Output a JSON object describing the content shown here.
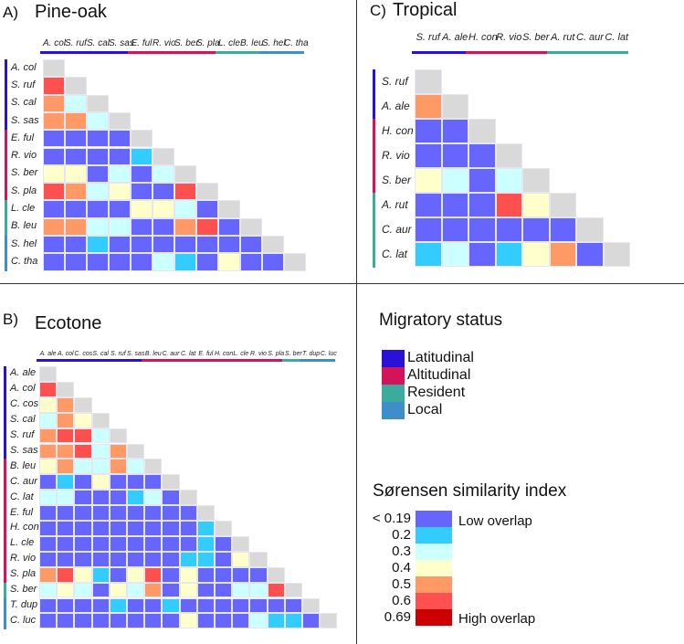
{
  "groups": {
    "lat": {
      "label": "Latitudinal",
      "color": "#2a10d8"
    },
    "alt": {
      "label": "Altitudinal",
      "color": "#d4145a"
    },
    "res": {
      "label": "Resident",
      "color": "#3aab9c"
    },
    "loc": {
      "label": "Local",
      "color": "#3e8ec8"
    }
  },
  "legend": {
    "migratory_title": "Migratory status",
    "similarity_title": "Sørensen similarity index",
    "low_label": "Low overlap",
    "high_label": "High overlap",
    "diagonal_color": "#d9d9d9",
    "bins": [
      {
        "label": "< 0.19",
        "value": 0.19,
        "color": "#6666ff"
      },
      {
        "label": "0.2",
        "value": 0.2,
        "color": "#33ccff"
      },
      {
        "label": "0.3",
        "value": 0.3,
        "color": "#ccffff"
      },
      {
        "label": "0.4",
        "value": 0.4,
        "color": "#ffffcc"
      },
      {
        "label": "0.5",
        "value": 0.5,
        "color": "#ff9966"
      },
      {
        "label": "0.6",
        "value": 0.6,
        "color": "#ff5050"
      },
      {
        "label": "0.69",
        "value": 0.69,
        "color": "#cc0000"
      }
    ]
  },
  "chart_data": [
    {
      "type": "heatmap",
      "letter": "A)",
      "title": "Pine-oak",
      "species": [
        "A. col",
        "S. ruf",
        "S. cal",
        "S. sas",
        "E. ful",
        "R. vio",
        "S. ber",
        "S. pla",
        "L. cle",
        "B. leu",
        "S. hel",
        "C. tha"
      ],
      "groups": [
        "lat",
        "lat",
        "lat",
        "lat",
        "alt",
        "alt",
        "alt",
        "alt",
        "res",
        "res",
        "loc",
        "loc"
      ],
      "rows": [
        [],
        [
          0.6
        ],
        [
          0.5,
          0.3
        ],
        [
          0.5,
          0.5,
          0.3
        ],
        [
          0.19,
          0.19,
          0.19,
          0.19
        ],
        [
          0.19,
          0.19,
          0.19,
          0.19,
          0.2
        ],
        [
          0.4,
          0.4,
          0.19,
          0.3,
          0.19,
          0.3
        ],
        [
          0.6,
          0.5,
          0.3,
          0.4,
          0.19,
          0.19,
          0.6
        ],
        [
          0.19,
          0.19,
          0.19,
          0.19,
          0.4,
          0.4,
          0.3,
          0.19
        ],
        [
          0.5,
          0.5,
          0.3,
          0.3,
          0.19,
          0.19,
          0.5,
          0.6,
          0.19
        ],
        [
          0.19,
          0.19,
          0.2,
          0.19,
          0.19,
          0.19,
          0.19,
          0.19,
          0.19,
          0.19
        ],
        [
          0.19,
          0.19,
          0.19,
          0.19,
          0.19,
          0.3,
          0.2,
          0.19,
          0.4,
          0.19,
          0.19
        ]
      ]
    },
    {
      "type": "heatmap",
      "letter": "B)",
      "title": "Ecotone",
      "species": [
        "A. ale",
        "A. col",
        "C. cos",
        "S. cal",
        "S. ruf",
        "S. sas",
        "B. leu",
        "C. aur",
        "C. lat",
        "E. ful",
        "H. con",
        "L. cle",
        "R. vio",
        "S. pla",
        "S. ber",
        "T. dup",
        "C. luc"
      ],
      "groups": [
        "lat",
        "lat",
        "lat",
        "lat",
        "lat",
        "lat",
        "alt",
        "alt",
        "alt",
        "alt",
        "alt",
        "alt",
        "alt",
        "alt",
        "res",
        "loc",
        "loc"
      ],
      "rows": [
        [],
        [
          0.6
        ],
        [
          0.4,
          0.5
        ],
        [
          0.3,
          0.5,
          0.4
        ],
        [
          0.5,
          0.6,
          0.6,
          0.3
        ],
        [
          0.5,
          0.5,
          0.6,
          0.3,
          0.5
        ],
        [
          0.4,
          0.5,
          0.3,
          0.3,
          0.5,
          0.3
        ],
        [
          0.19,
          0.2,
          0.19,
          0.4,
          0.19,
          0.19,
          0.19
        ],
        [
          0.3,
          0.3,
          0.19,
          0.19,
          0.19,
          0.2,
          0.3,
          0.19
        ],
        [
          0.19,
          0.19,
          0.19,
          0.19,
          0.19,
          0.19,
          0.19,
          0.19,
          0.19
        ],
        [
          0.19,
          0.19,
          0.19,
          0.19,
          0.19,
          0.19,
          0.19,
          0.19,
          0.19,
          0.2
        ],
        [
          0.19,
          0.19,
          0.19,
          0.19,
          0.19,
          0.19,
          0.19,
          0.19,
          0.19,
          0.2,
          0.19
        ],
        [
          0.19,
          0.19,
          0.19,
          0.19,
          0.19,
          0.19,
          0.19,
          0.19,
          0.2,
          0.2,
          0.19,
          0.4
        ],
        [
          0.5,
          0.6,
          0.4,
          0.2,
          0.19,
          0.4,
          0.6,
          0.19,
          0.4,
          0.19,
          0.19,
          0.19,
          0.19
        ],
        [
          0.3,
          0.4,
          0.3,
          0.19,
          0.4,
          0.3,
          0.5,
          0.19,
          0.4,
          0.19,
          0.19,
          0.3,
          0.3,
          0.6
        ],
        [
          0.19,
          0.19,
          0.19,
          0.19,
          0.2,
          0.19,
          0.19,
          0.2,
          0.19,
          0.19,
          0.19,
          0.19,
          0.19,
          0.19,
          0.19
        ],
        [
          0.19,
          0.19,
          0.19,
          0.19,
          0.19,
          0.19,
          0.19,
          0.19,
          0.4,
          0.19,
          0.19,
          0.19,
          0.3,
          0.2,
          0.2,
          0.19
        ]
      ]
    },
    {
      "type": "heatmap",
      "letter": "C)",
      "title": "Tropical",
      "species": [
        "S. ruf",
        "A. ale",
        "H. con",
        "R. vio",
        "S. ber",
        "A. rut",
        "C. aur",
        "C. lat"
      ],
      "groups": [
        "lat",
        "lat",
        "alt",
        "alt",
        "alt",
        "res",
        "res",
        "res"
      ],
      "rows": [
        [],
        [
          0.5
        ],
        [
          0.19,
          0.19
        ],
        [
          0.19,
          0.19,
          0.19
        ],
        [
          0.4,
          0.3,
          0.19,
          0.3
        ],
        [
          0.19,
          0.19,
          0.19,
          0.6,
          0.4
        ],
        [
          0.19,
          0.19,
          0.19,
          0.19,
          0.19,
          0.19
        ],
        [
          0.2,
          0.3,
          0.19,
          0.2,
          0.4,
          0.5,
          0.19
        ]
      ]
    }
  ]
}
